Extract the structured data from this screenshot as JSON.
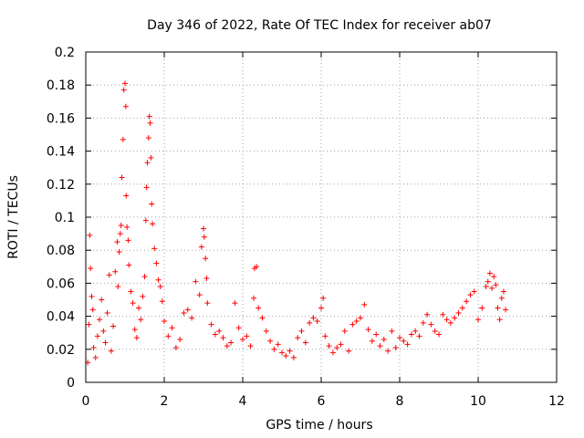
{
  "chart_data": {
    "type": "scatter",
    "title": "Day 346 of 2022, Rate Of TEC Index for receiver ab07",
    "xlabel": "GPS time / hours",
    "ylabel": "ROTI / TECUs",
    "xlim": [
      0,
      12
    ],
    "ylim": [
      0,
      0.2
    ],
    "x_ticks": [
      "0",
      "2",
      "4",
      "6",
      "8",
      "10",
      "12"
    ],
    "y_ticks": [
      "0",
      "0.02",
      "0.04",
      "0.06",
      "0.08",
      "0.1",
      "0.12",
      "0.14",
      "0.16",
      "0.18",
      "0.2"
    ],
    "grid": true,
    "marker": "+",
    "color": "#ff0000",
    "series": [
      {
        "name": "ROTI",
        "points": [
          [
            0.05,
            0.012
          ],
          [
            0.08,
            0.035
          ],
          [
            0.1,
            0.089
          ],
          [
            0.12,
            0.069
          ],
          [
            0.15,
            0.052
          ],
          [
            0.18,
            0.044
          ],
          [
            0.2,
            0.021
          ],
          [
            0.25,
            0.015
          ],
          [
            0.3,
            0.028
          ],
          [
            0.35,
            0.038
          ],
          [
            0.4,
            0.05
          ],
          [
            0.45,
            0.031
          ],
          [
            0.5,
            0.024
          ],
          [
            0.55,
            0.042
          ],
          [
            0.6,
            0.065
          ],
          [
            0.65,
            0.019
          ],
          [
            0.7,
            0.034
          ],
          [
            0.75,
            0.067
          ],
          [
            0.8,
            0.085
          ],
          [
            0.82,
            0.058
          ],
          [
            0.85,
            0.079
          ],
          [
            0.88,
            0.09
          ],
          [
            0.9,
            0.095
          ],
          [
            0.92,
            0.124
          ],
          [
            0.95,
            0.147
          ],
          [
            0.97,
            0.177
          ],
          [
            1.0,
            0.181
          ],
          [
            1.02,
            0.167
          ],
          [
            1.03,
            0.113
          ],
          [
            1.05,
            0.094
          ],
          [
            1.08,
            0.086
          ],
          [
            1.1,
            0.071
          ],
          [
            1.15,
            0.055
          ],
          [
            1.2,
            0.048
          ],
          [
            1.25,
            0.032
          ],
          [
            1.3,
            0.027
          ],
          [
            1.35,
            0.045
          ],
          [
            1.4,
            0.038
          ],
          [
            1.45,
            0.052
          ],
          [
            1.5,
            0.064
          ],
          [
            1.53,
            0.098
          ],
          [
            1.55,
            0.118
          ],
          [
            1.57,
            0.133
          ],
          [
            1.6,
            0.148
          ],
          [
            1.62,
            0.161
          ],
          [
            1.64,
            0.157
          ],
          [
            1.66,
            0.136
          ],
          [
            1.68,
            0.108
          ],
          [
            1.7,
            0.096
          ],
          [
            1.75,
            0.081
          ],
          [
            1.8,
            0.072
          ],
          [
            1.85,
            0.062
          ],
          [
            1.9,
            0.058
          ],
          [
            1.95,
            0.049
          ],
          [
            2.0,
            0.037
          ],
          [
            2.1,
            0.028
          ],
          [
            2.2,
            0.033
          ],
          [
            2.3,
            0.021
          ],
          [
            2.4,
            0.026
          ],
          [
            2.5,
            0.042
          ],
          [
            2.6,
            0.044
          ],
          [
            2.7,
            0.039
          ],
          [
            2.8,
            0.061
          ],
          [
            2.9,
            0.053
          ],
          [
            2.95,
            0.082
          ],
          [
            3.0,
            0.093
          ],
          [
            3.02,
            0.088
          ],
          [
            3.05,
            0.075
          ],
          [
            3.08,
            0.063
          ],
          [
            3.1,
            0.048
          ],
          [
            3.2,
            0.035
          ],
          [
            3.3,
            0.029
          ],
          [
            3.4,
            0.031
          ],
          [
            3.5,
            0.027
          ],
          [
            3.6,
            0.022
          ],
          [
            3.7,
            0.024
          ],
          [
            3.8,
            0.048
          ],
          [
            3.9,
            0.033
          ],
          [
            4.0,
            0.026
          ],
          [
            4.1,
            0.028
          ],
          [
            4.2,
            0.022
          ],
          [
            4.28,
            0.051
          ],
          [
            4.3,
            0.069
          ],
          [
            4.35,
            0.07
          ],
          [
            4.4,
            0.045
          ],
          [
            4.5,
            0.039
          ],
          [
            4.6,
            0.031
          ],
          [
            4.7,
            0.025
          ],
          [
            4.8,
            0.02
          ],
          [
            4.9,
            0.023
          ],
          [
            5.0,
            0.018
          ],
          [
            5.1,
            0.016
          ],
          [
            5.2,
            0.019
          ],
          [
            5.3,
            0.015
          ],
          [
            5.4,
            0.027
          ],
          [
            5.5,
            0.031
          ],
          [
            5.6,
            0.024
          ],
          [
            5.7,
            0.036
          ],
          [
            5.8,
            0.039
          ],
          [
            5.9,
            0.037
          ],
          [
            6.0,
            0.045
          ],
          [
            6.05,
            0.051
          ],
          [
            6.1,
            0.028
          ],
          [
            6.2,
            0.022
          ],
          [
            6.3,
            0.018
          ],
          [
            6.4,
            0.021
          ],
          [
            6.5,
            0.023
          ],
          [
            6.6,
            0.031
          ],
          [
            6.7,
            0.019
          ],
          [
            6.8,
            0.035
          ],
          [
            6.9,
            0.037
          ],
          [
            7.0,
            0.039
          ],
          [
            7.1,
            0.047
          ],
          [
            7.2,
            0.032
          ],
          [
            7.3,
            0.025
          ],
          [
            7.4,
            0.029
          ],
          [
            7.5,
            0.022
          ],
          [
            7.6,
            0.026
          ],
          [
            7.7,
            0.019
          ],
          [
            7.8,
            0.031
          ],
          [
            7.9,
            0.021
          ],
          [
            8.0,
            0.027
          ],
          [
            8.1,
            0.025
          ],
          [
            8.2,
            0.023
          ],
          [
            8.3,
            0.029
          ],
          [
            8.4,
            0.031
          ],
          [
            8.5,
            0.028
          ],
          [
            8.6,
            0.036
          ],
          [
            8.7,
            0.041
          ],
          [
            8.8,
            0.035
          ],
          [
            8.9,
            0.031
          ],
          [
            9.0,
            0.029
          ],
          [
            9.1,
            0.041
          ],
          [
            9.2,
            0.038
          ],
          [
            9.3,
            0.036
          ],
          [
            9.4,
            0.039
          ],
          [
            9.5,
            0.042
          ],
          [
            9.6,
            0.045
          ],
          [
            9.7,
            0.049
          ],
          [
            9.8,
            0.053
          ],
          [
            9.9,
            0.055
          ],
          [
            10.0,
            0.038
          ],
          [
            10.1,
            0.045
          ],
          [
            10.2,
            0.058
          ],
          [
            10.25,
            0.061
          ],
          [
            10.3,
            0.066
          ],
          [
            10.35,
            0.057
          ],
          [
            10.4,
            0.064
          ],
          [
            10.45,
            0.059
          ],
          [
            10.5,
            0.045
          ],
          [
            10.55,
            0.038
          ],
          [
            10.6,
            0.051
          ],
          [
            10.65,
            0.055
          ],
          [
            10.7,
            0.044
          ]
        ]
      }
    ]
  }
}
